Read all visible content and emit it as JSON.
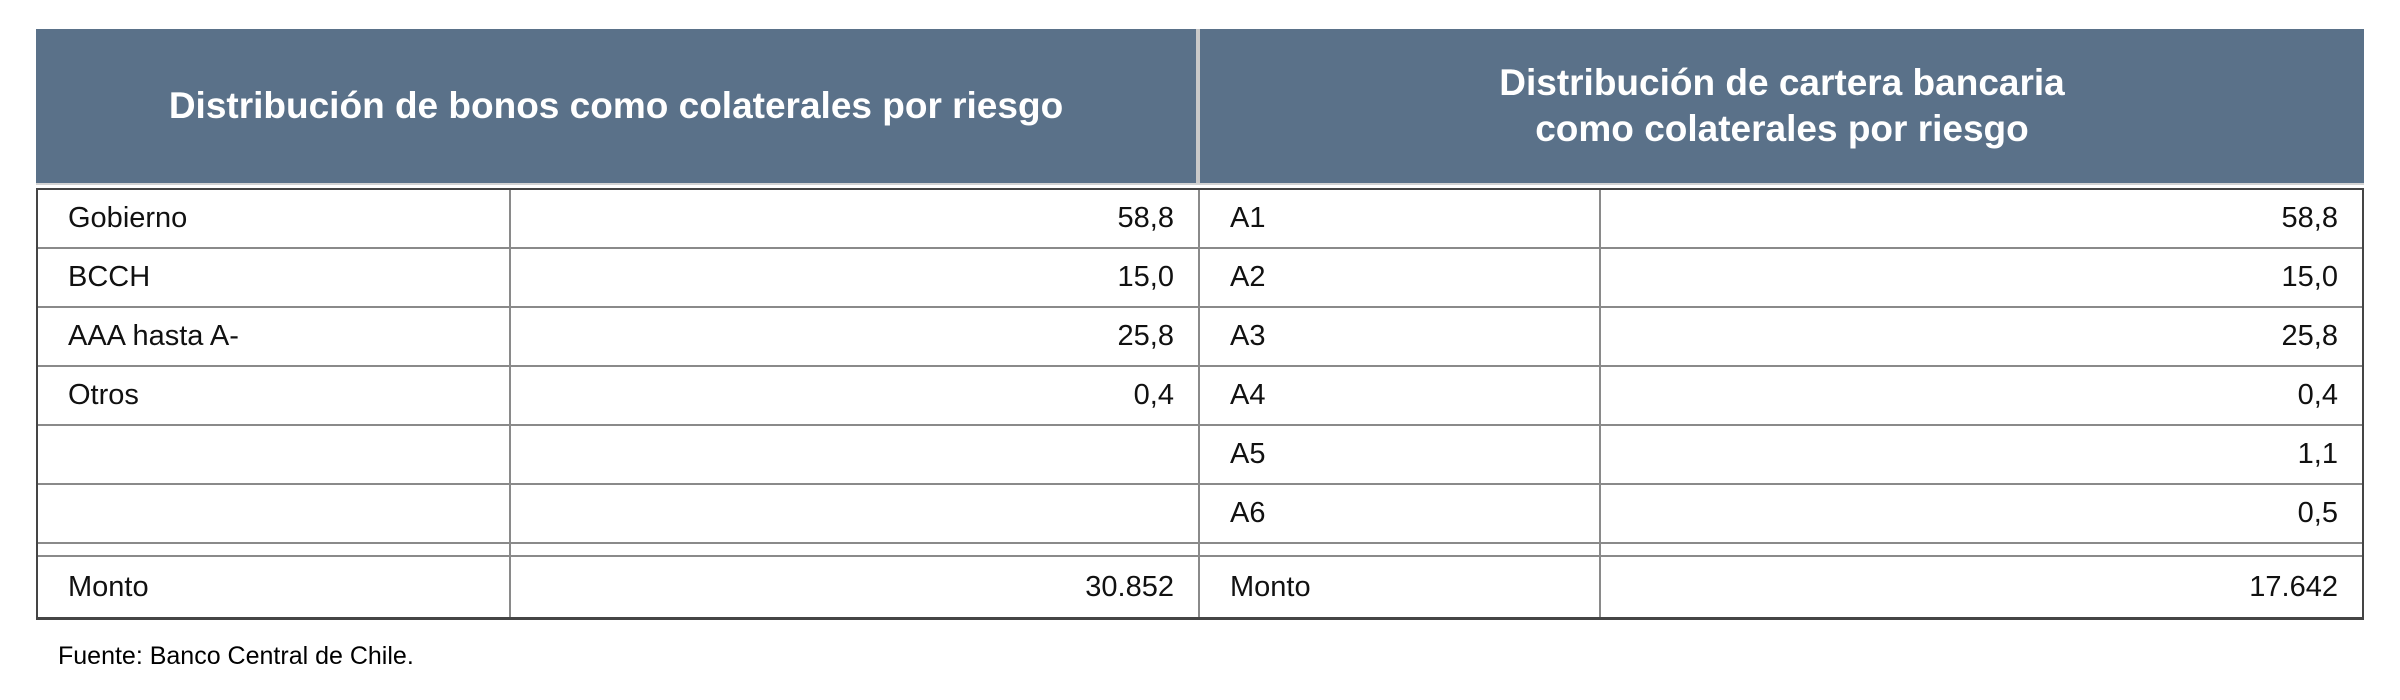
{
  "figure": {
    "kind": "two-panel data table",
    "colors": {
      "header_background": "#5A7189",
      "header_text": "#FFFFFF",
      "header_divider": "#C9C9C9",
      "grid_line": "#8A8A8A",
      "outer_border": "#454545",
      "body_text": "#111111",
      "page_background": "#FFFFFF"
    }
  },
  "tables": [
    {
      "title": "Distribución de bonos como colaterales por riesgo",
      "rows": [
        {
          "label": "Gobierno",
          "value": "58,8"
        },
        {
          "label": "BCCH",
          "value": "15,0"
        },
        {
          "label": "AAA hasta A-",
          "value": "25,8"
        },
        {
          "label": "Otros",
          "value": "0,4"
        },
        {
          "label": "",
          "value": ""
        },
        {
          "label": "",
          "value": ""
        }
      ],
      "total": {
        "label": "Monto",
        "value": "30.852"
      }
    },
    {
      "title": "Distribución de cartera bancaria\ncomo colaterales por riesgo",
      "rows": [
        {
          "label": "A1",
          "value": "58,8"
        },
        {
          "label": "A2",
          "value": "15,0"
        },
        {
          "label": "A3",
          "value": "25,8"
        },
        {
          "label": "A4",
          "value": "0,4"
        },
        {
          "label": "A5",
          "value": "1,1"
        },
        {
          "label": "A6",
          "value": "0,5"
        }
      ],
      "total": {
        "label": "Monto",
        "value": "17.642"
      }
    }
  ],
  "source_note": "Fuente: Banco Central de Chile.",
  "chart_data": {
    "type": "table",
    "tables": [
      {
        "title": "Distribución de bonos como colaterales por riesgo",
        "categories": [
          "Gobierno",
          "BCCH",
          "AAA hasta A-",
          "Otros"
        ],
        "values": [
          58.8,
          15.0,
          25.8,
          0.4
        ],
        "total_label": "Monto",
        "total_value": 30852
      },
      {
        "title": "Distribución de cartera bancaria como colaterales por riesgo",
        "categories": [
          "A1",
          "A2",
          "A3",
          "A4",
          "A5",
          "A6"
        ],
        "values": [
          58.8,
          15.0,
          25.8,
          0.4,
          1.1,
          0.5
        ],
        "total_label": "Monto",
        "total_value": 17642
      }
    ]
  }
}
